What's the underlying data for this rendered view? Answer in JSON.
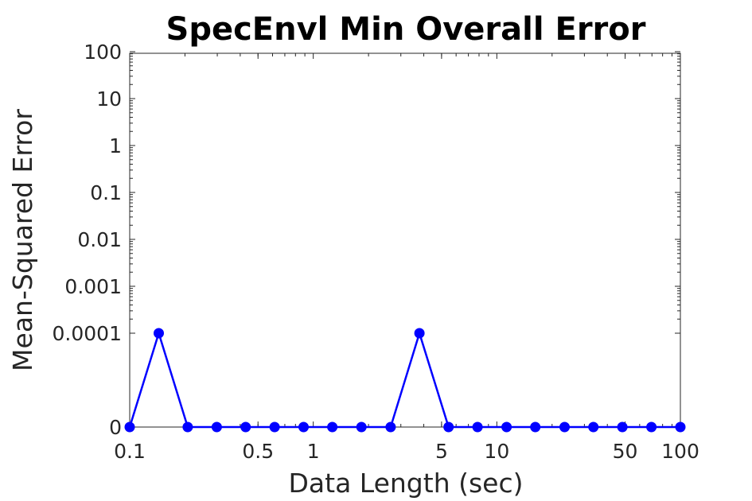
{
  "chart_data": {
    "type": "line",
    "title": "SpecEnvl Min Overall Error",
    "xlabel": "Data Length (sec)",
    "ylabel": "Mean-Squared Error",
    "xscale": "log",
    "yscale": "log-with-zero-baseline",
    "grid": false,
    "legend": "none",
    "x_ticks": [
      {
        "value": 0.1,
        "label": "0.1"
      },
      {
        "value": 0.5,
        "label": "0.5"
      },
      {
        "value": 1,
        "label": "1"
      },
      {
        "value": 5,
        "label": "5"
      },
      {
        "value": 10,
        "label": "10"
      },
      {
        "value": 50,
        "label": "50"
      },
      {
        "value": 100,
        "label": "100"
      }
    ],
    "y_ticks": [
      {
        "value": 0,
        "label": "0"
      },
      {
        "value": 0.0001,
        "label": "0.0001"
      },
      {
        "value": 0.001,
        "label": "0.001"
      },
      {
        "value": 0.01,
        "label": "0.01"
      },
      {
        "value": 0.1,
        "label": "0.1"
      },
      {
        "value": 1,
        "label": "1"
      },
      {
        "value": 10,
        "label": "10"
      },
      {
        "value": 100,
        "label": "100"
      }
    ],
    "xlim": [
      0.1,
      100
    ],
    "ylim": [
      0,
      100
    ],
    "series": [
      {
        "color": "#0000ff",
        "marker": "circle",
        "x": [
          0.1,
          0.144,
          0.207,
          0.298,
          0.428,
          0.616,
          0.886,
          1.27,
          1.83,
          2.64,
          3.79,
          5.46,
          7.85,
          11.3,
          16.2,
          23.4,
          33.6,
          48.3,
          69.5,
          100
        ],
        "y": [
          0,
          0.0001,
          0,
          0,
          0,
          0,
          0,
          0,
          0,
          0,
          0.0001,
          0,
          0,
          0,
          0,
          0,
          0,
          0,
          0,
          0
        ]
      }
    ]
  }
}
